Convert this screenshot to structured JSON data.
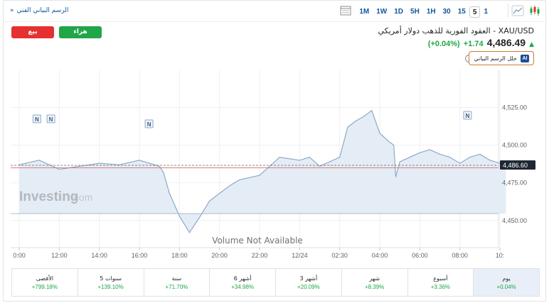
{
  "toolbar": {
    "advanced_chart_link": "الرسم البياني الفني",
    "advanced_chart_chevron": "»",
    "periods": [
      "1M",
      "1W",
      "1D",
      "5H",
      "1H",
      "30",
      "15",
      "5",
      "1"
    ],
    "active_period": "5",
    "icons": [
      "table-icon",
      "area-chart-icon",
      "candlestick-icon"
    ]
  },
  "trade": {
    "sell_label": "بيع",
    "buy_label": "هراء"
  },
  "instrument": {
    "title": "XAU/USD - العقود الفورية للذهب دولار أمريكي",
    "price": "4,486.49",
    "change": "+1.74",
    "change_pct": "(+0.04%)",
    "trend_icon": "up-arrow-icon",
    "info_icon": "i",
    "analyze_label": "حلل الرسم البياني",
    "analyze_badge": "AI"
  },
  "chart_data": {
    "type": "area",
    "x_tick_labels": [
      "0:00",
      "12:00",
      "14:00",
      "16:00",
      "18:00",
      "20:00",
      "22:00",
      "12/24",
      "02:30",
      "04:00",
      "06:00",
      "08:00",
      "10:"
    ],
    "y_ticks": [
      4525.0,
      4500.0,
      4475.0,
      4450.0
    ],
    "y_tick_labels": [
      "4,525.00",
      "4,500.00",
      "4,475.00",
      "4,450.00"
    ],
    "ylim": [
      4432,
      4545
    ],
    "current_price": 4486.6,
    "current_price_label": "4,486.60",
    "reference_line": 4485.0,
    "series": [
      {
        "x_index": [
          0,
          0.5,
          1,
          1.5,
          2,
          2.5,
          3,
          3.25,
          3.5,
          3.6,
          3.75,
          4,
          4.25,
          4.5,
          4.75,
          5,
          5.25,
          5.5,
          6,
          6.5,
          7,
          7.25,
          7.5,
          7.75,
          8,
          8.2,
          8.4,
          8.6,
          8.8,
          9,
          9.2,
          9.35,
          9.4,
          9.5,
          9.75,
          10,
          10.25,
          10.5,
          10.75,
          11,
          11.25,
          11.5,
          11.75,
          12,
          12.15
        ],
        "values": [
          4487,
          4490,
          4484,
          4486,
          4488,
          4487,
          4490,
          4488,
          4486,
          4482,
          4468,
          4453,
          4442,
          4452,
          4463,
          4468,
          4473,
          4477,
          4480,
          4492,
          4490,
          4492,
          4486,
          4489,
          4492,
          4512,
          4516,
          4519,
          4523,
          4508,
          4503,
          4500,
          4479,
          4489,
          4492,
          4495,
          4497,
          4494,
          4492,
          4488,
          4492,
          4494,
          4490,
          4488,
          4486.6
        ]
      }
    ],
    "markers": [
      "N",
      "N",
      "N",
      "N"
    ],
    "watermark": "Investing",
    "watermark_suffix": ".com",
    "volume_note": "Volume Not Available",
    "colors": {
      "line": "#8ea9c8",
      "fill": "#e4edf6",
      "reference": "#e06666",
      "current": "#5f6368",
      "price_tag": "#1e2733"
    }
  },
  "performance": [
    {
      "label": "يوم",
      "value": "+0.04%",
      "selected": true
    },
    {
      "label": "أسبوع",
      "value": "+3.36%"
    },
    {
      "label": "شهر",
      "value": "+8.39%"
    },
    {
      "label": "3 أشهر",
      "value": "+20.09%"
    },
    {
      "label": "6 أشهر",
      "value": "+34.98%"
    },
    {
      "label": "سنة",
      "value": "+71.70%"
    },
    {
      "label": "5 سنوات",
      "value": "+139.10%"
    },
    {
      "label": "الأقصى",
      "value": "+799.18%"
    }
  ]
}
